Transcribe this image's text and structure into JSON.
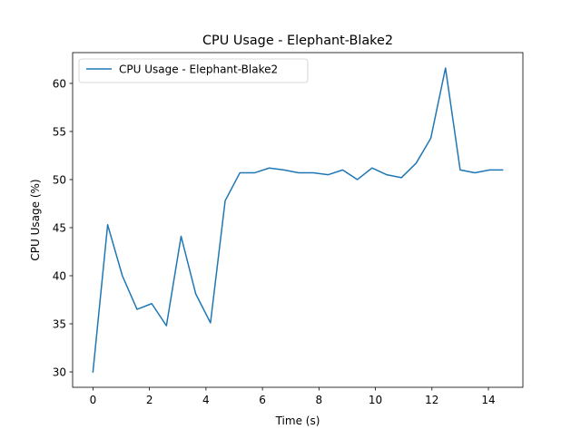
{
  "chart_data": {
    "type": "line",
    "title": "CPU Usage - Elephant-Blake2",
    "xlabel": "Time (s)",
    "ylabel": "CPU Usage (%)",
    "xlim": [
      -0.72,
      15.22
    ],
    "ylim": [
      28.4,
      63.2
    ],
    "xticks": [
      0,
      2,
      4,
      6,
      8,
      10,
      12,
      14
    ],
    "yticks": [
      30,
      35,
      40,
      45,
      50,
      55,
      60
    ],
    "xtick_labels": [
      "0",
      "2",
      "4",
      "6",
      "8",
      "10",
      "12",
      "14"
    ],
    "ytick_labels": [
      "30",
      "35",
      "40",
      "45",
      "50",
      "55",
      "60"
    ],
    "grid": false,
    "legend_position": "top-left",
    "series": [
      {
        "name": "CPU Usage - Elephant-Blake2",
        "color": "#1f77b4",
        "x": [
          0.0,
          0.52,
          1.04,
          1.56,
          2.08,
          2.6,
          3.12,
          3.64,
          4.16,
          4.68,
          5.2,
          5.72,
          6.24,
          6.76,
          7.28,
          7.8,
          8.32,
          8.84,
          9.36,
          9.88,
          10.4,
          10.92,
          11.44,
          11.96,
          12.48,
          13.0,
          13.52,
          14.04,
          14.5
        ],
        "y": [
          30.0,
          45.3,
          40.0,
          36.5,
          37.1,
          34.8,
          44.1,
          38.1,
          35.1,
          47.8,
          50.7,
          50.7,
          51.2,
          51.0,
          50.7,
          50.7,
          50.5,
          51.0,
          50.0,
          51.2,
          50.5,
          50.2,
          51.7,
          54.3,
          61.6,
          51.0,
          50.7,
          51.0,
          51.0
        ]
      }
    ]
  }
}
